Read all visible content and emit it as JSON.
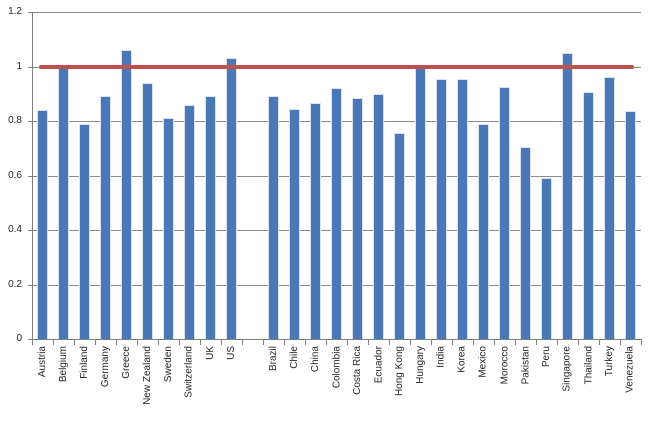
{
  "chart_data": {
    "type": "bar",
    "title": "",
    "xlabel": "",
    "ylabel": "",
    "ylim": [
      0,
      1.2
    ],
    "grid": true,
    "legend": "none",
    "ytick_labels": [
      "0",
      "0.2",
      "0.4",
      "0.6",
      "0.8",
      "1",
      "1.2"
    ],
    "yticks": [
      0,
      0.2,
      0.4,
      0.6,
      0.8,
      1.0,
      1.2
    ],
    "categories": [
      "Austria",
      "Belgium",
      "Finland",
      "Germany",
      "Greece",
      "New Zealand",
      "Sweden",
      "Switzerland",
      "UK",
      "US",
      "Brazil",
      "Chile",
      "China",
      "Colombia",
      "Costa Rica",
      "Ecuador",
      "Hong Kong",
      "Hungary",
      "India",
      "Korea",
      "Mexico",
      "Morocco",
      "Pakistan",
      "Peru",
      "Singapore",
      "Thailand",
      "Turkey",
      "Venezuela"
    ],
    "values": [
      0.84,
      1.0,
      0.79,
      0.89,
      1.06,
      0.94,
      0.81,
      0.86,
      0.89,
      1.03,
      0.89,
      0.845,
      0.865,
      0.92,
      0.885,
      0.9,
      0.755,
      0.995,
      0.955,
      0.955,
      0.79,
      0.925,
      0.705,
      0.59,
      1.05,
      0.905,
      0.96,
      0.835
    ],
    "gap_slot": 10,
    "total_slots": 29,
    "reference_line": {
      "value": 1.0,
      "color": "#C0504D"
    },
    "colors": {
      "bar_fill": "#4A77B5",
      "bar_edge": "#D9E2F0",
      "gridline": "#8C8C8C",
      "axis": "#808080",
      "label_text": "#262626",
      "background": "#FFFFFF"
    }
  }
}
